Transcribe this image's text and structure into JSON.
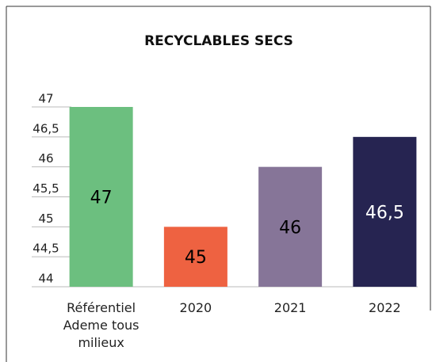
{
  "chart_data": {
    "type": "bar",
    "title": "RECYCLABLES SECS",
    "categories": [
      "Référentiel Ademe tous milieux",
      "2020",
      "2021",
      "2022"
    ],
    "values": [
      47,
      45,
      46,
      46.5
    ],
    "value_labels": [
      "47",
      "45",
      "46",
      "46,5"
    ],
    "colors": [
      "#6cbf7f",
      "#ee6241",
      "#867598",
      "#262451"
    ],
    "label_colors": [
      "#000000",
      "#000000",
      "#000000",
      "#ffffff"
    ],
    "ylim": [
      44,
      47
    ],
    "yticks": [
      44,
      {
        "value": 44.5,
        "label": "44,5"
      },
      45,
      {
        "value": 45.5,
        "label": "45,5"
      },
      46,
      {
        "value": 46.5,
        "label": "46,5"
      },
      47
    ],
    "grid": true
  }
}
